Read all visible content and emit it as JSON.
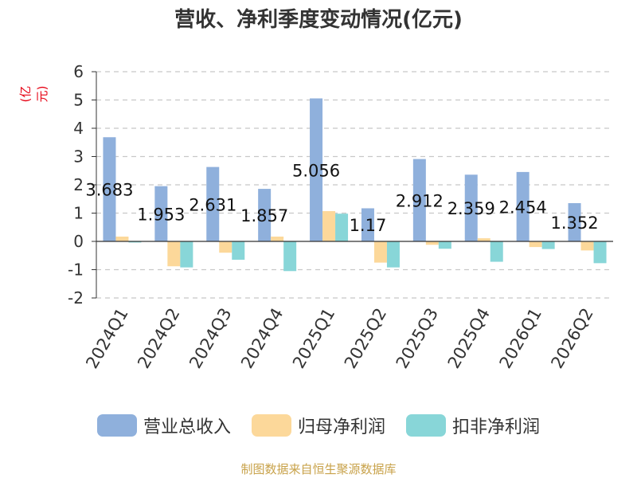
{
  "title": "营收、净利季度变动情况(亿元)",
  "source_note": "制图数据来自恒生聚源数据库",
  "chart_data": {
    "type": "bar",
    "title": "营收、净利季度变动情况(亿元)",
    "ylabel": "(亿元)",
    "xlabel": "",
    "ylim": [
      -2,
      6
    ],
    "yticks": [
      6,
      5,
      4,
      3,
      2,
      1,
      0,
      -1,
      -2
    ],
    "grid": true,
    "legend_position": "bottom",
    "categories": [
      "2024Q1",
      "2024Q2",
      "2024Q3",
      "2024Q4",
      "2025Q1",
      "2025Q2",
      "2025Q3",
      "2025Q4",
      "2026Q1",
      "2026Q2"
    ],
    "series": [
      {
        "name": "营业总收入",
        "color": "#8fb0dc",
        "values": [
          3.683,
          1.953,
          2.631,
          1.857,
          5.056,
          1.17,
          2.912,
          2.359,
          2.454,
          1.352
        ],
        "data_labels": [
          "3.683",
          "1.953",
          "2.631",
          "1.857",
          "5.056",
          "1.17",
          "2.912",
          "2.359",
          "2.454",
          "1.352"
        ]
      },
      {
        "name": "归母净利润",
        "color": "#fcd89a",
        "values": [
          0.17,
          -0.88,
          -0.4,
          0.17,
          1.07,
          -0.75,
          -0.12,
          0.11,
          -0.2,
          -0.32
        ]
      },
      {
        "name": "扣非净利润",
        "color": "#88d6d8",
        "values": [
          -0.04,
          -0.92,
          -0.65,
          -1.05,
          0.98,
          -0.92,
          -0.26,
          -0.72,
          -0.27,
          -0.77
        ]
      }
    ]
  }
}
